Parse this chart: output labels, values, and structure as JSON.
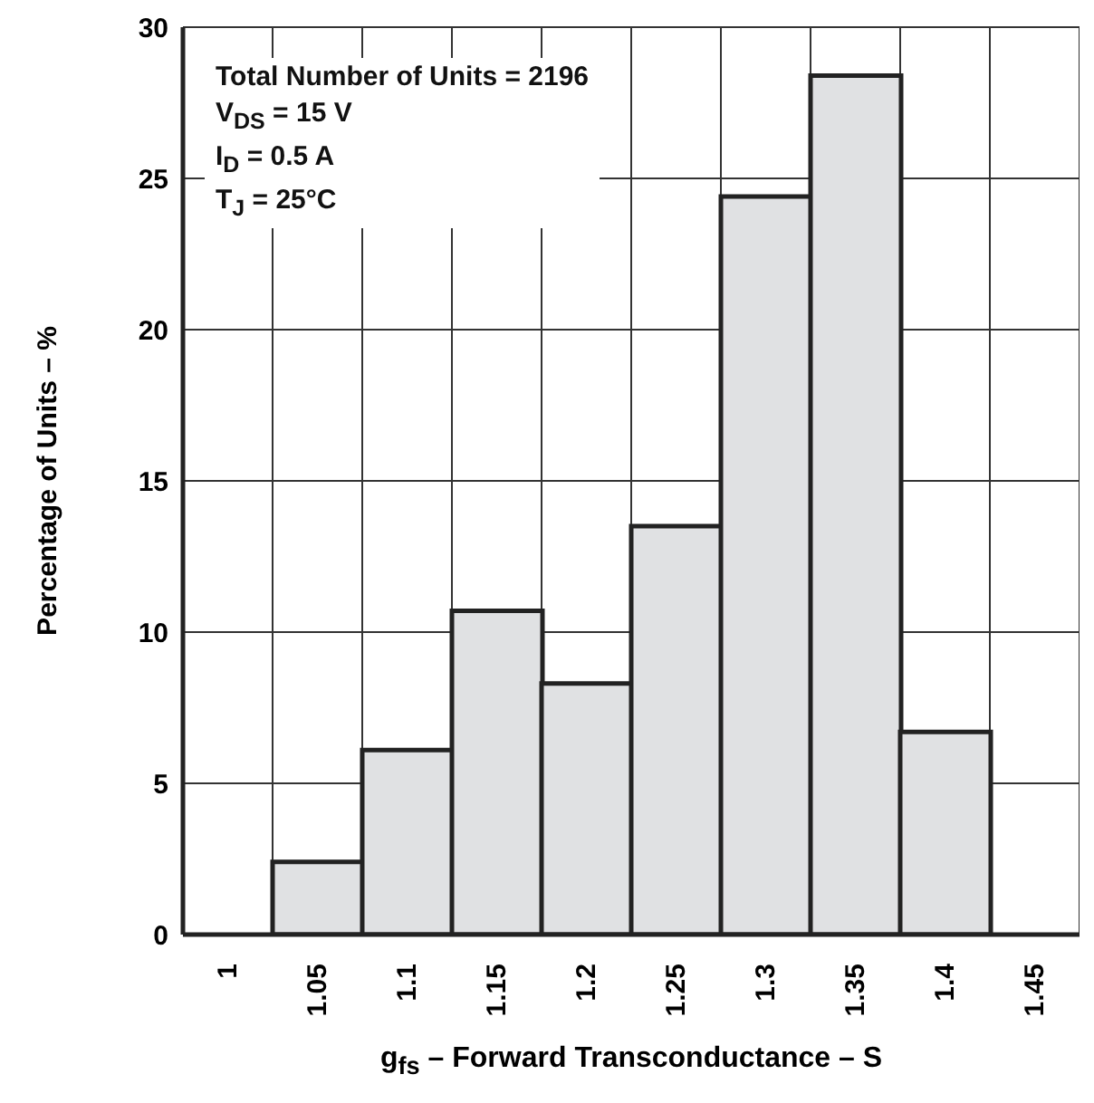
{
  "chart_data": {
    "type": "bar",
    "categories": [
      "1",
      "1.05",
      "1.1",
      "1.15",
      "1.2",
      "1.25",
      "1.3",
      "1.35",
      "1.4",
      "1.45"
    ],
    "values": [
      0,
      2.4,
      6.1,
      10.7,
      8.3,
      13.5,
      24.4,
      28.4,
      6.7,
      0
    ],
    "color": "#e0e1e3",
    "xlabel": "g$_{fs}$ – Forward Transconductance – S",
    "ylabel": "Percentage of Units – %",
    "ylim": [
      0,
      30
    ],
    "yticks": [
      0,
      5,
      10,
      15,
      20,
      25,
      30
    ],
    "grid": true,
    "annotations": [
      "Total Number of Units = 2196",
      "V$_{DS}$ = 15 V",
      "I$_{D}$ = 0.5 A",
      "T$_{J}$ = 25°C"
    ]
  }
}
